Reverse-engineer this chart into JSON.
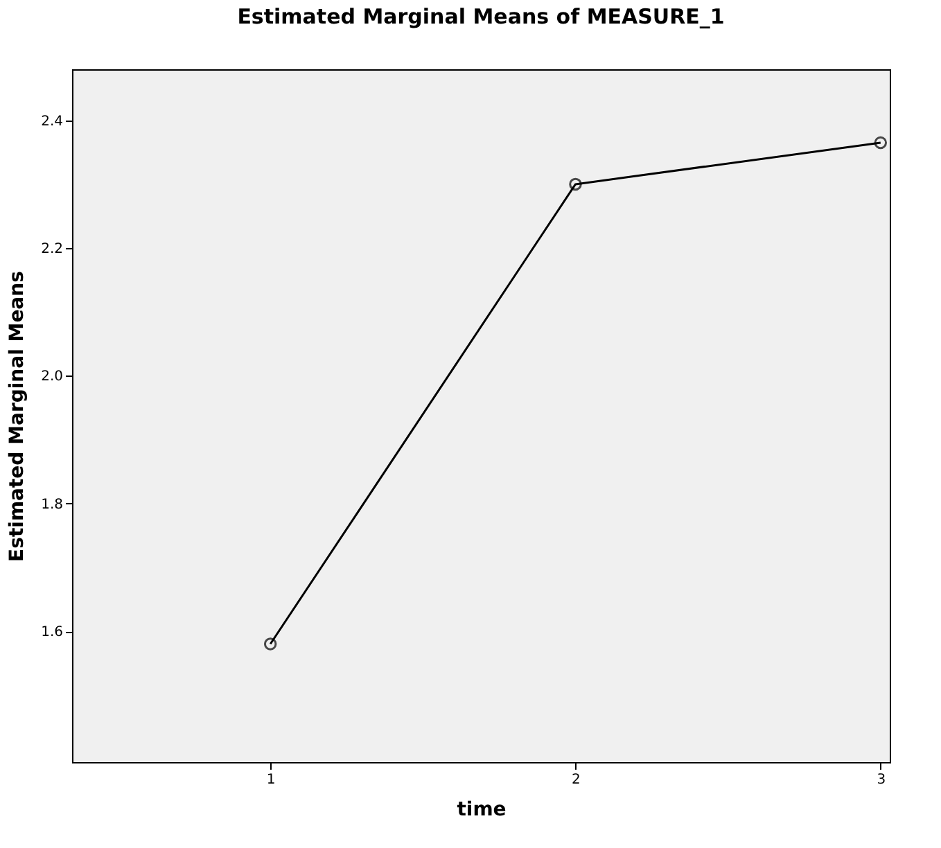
{
  "chart_data": {
    "type": "line",
    "title": "Estimated Marginal Means of MEASURE_1",
    "xlabel": "time",
    "ylabel": "Estimated Marginal Means",
    "x": [
      1,
      2,
      3
    ],
    "series": [
      {
        "color": "#000000",
        "values": [
          1.58,
          2.3,
          2.365
        ]
      }
    ],
    "xlim": [
      0.35,
      3.03
    ],
    "xticks": [
      1,
      2,
      3
    ],
    "ylim": [
      1.395,
      2.48
    ],
    "yticks": [
      1.6,
      1.8,
      {
        "value": 2,
        "label": "2.0"
      },
      2.2,
      2.4
    ],
    "grid": false,
    "marker": "circle",
    "line_style": "solid"
  }
}
